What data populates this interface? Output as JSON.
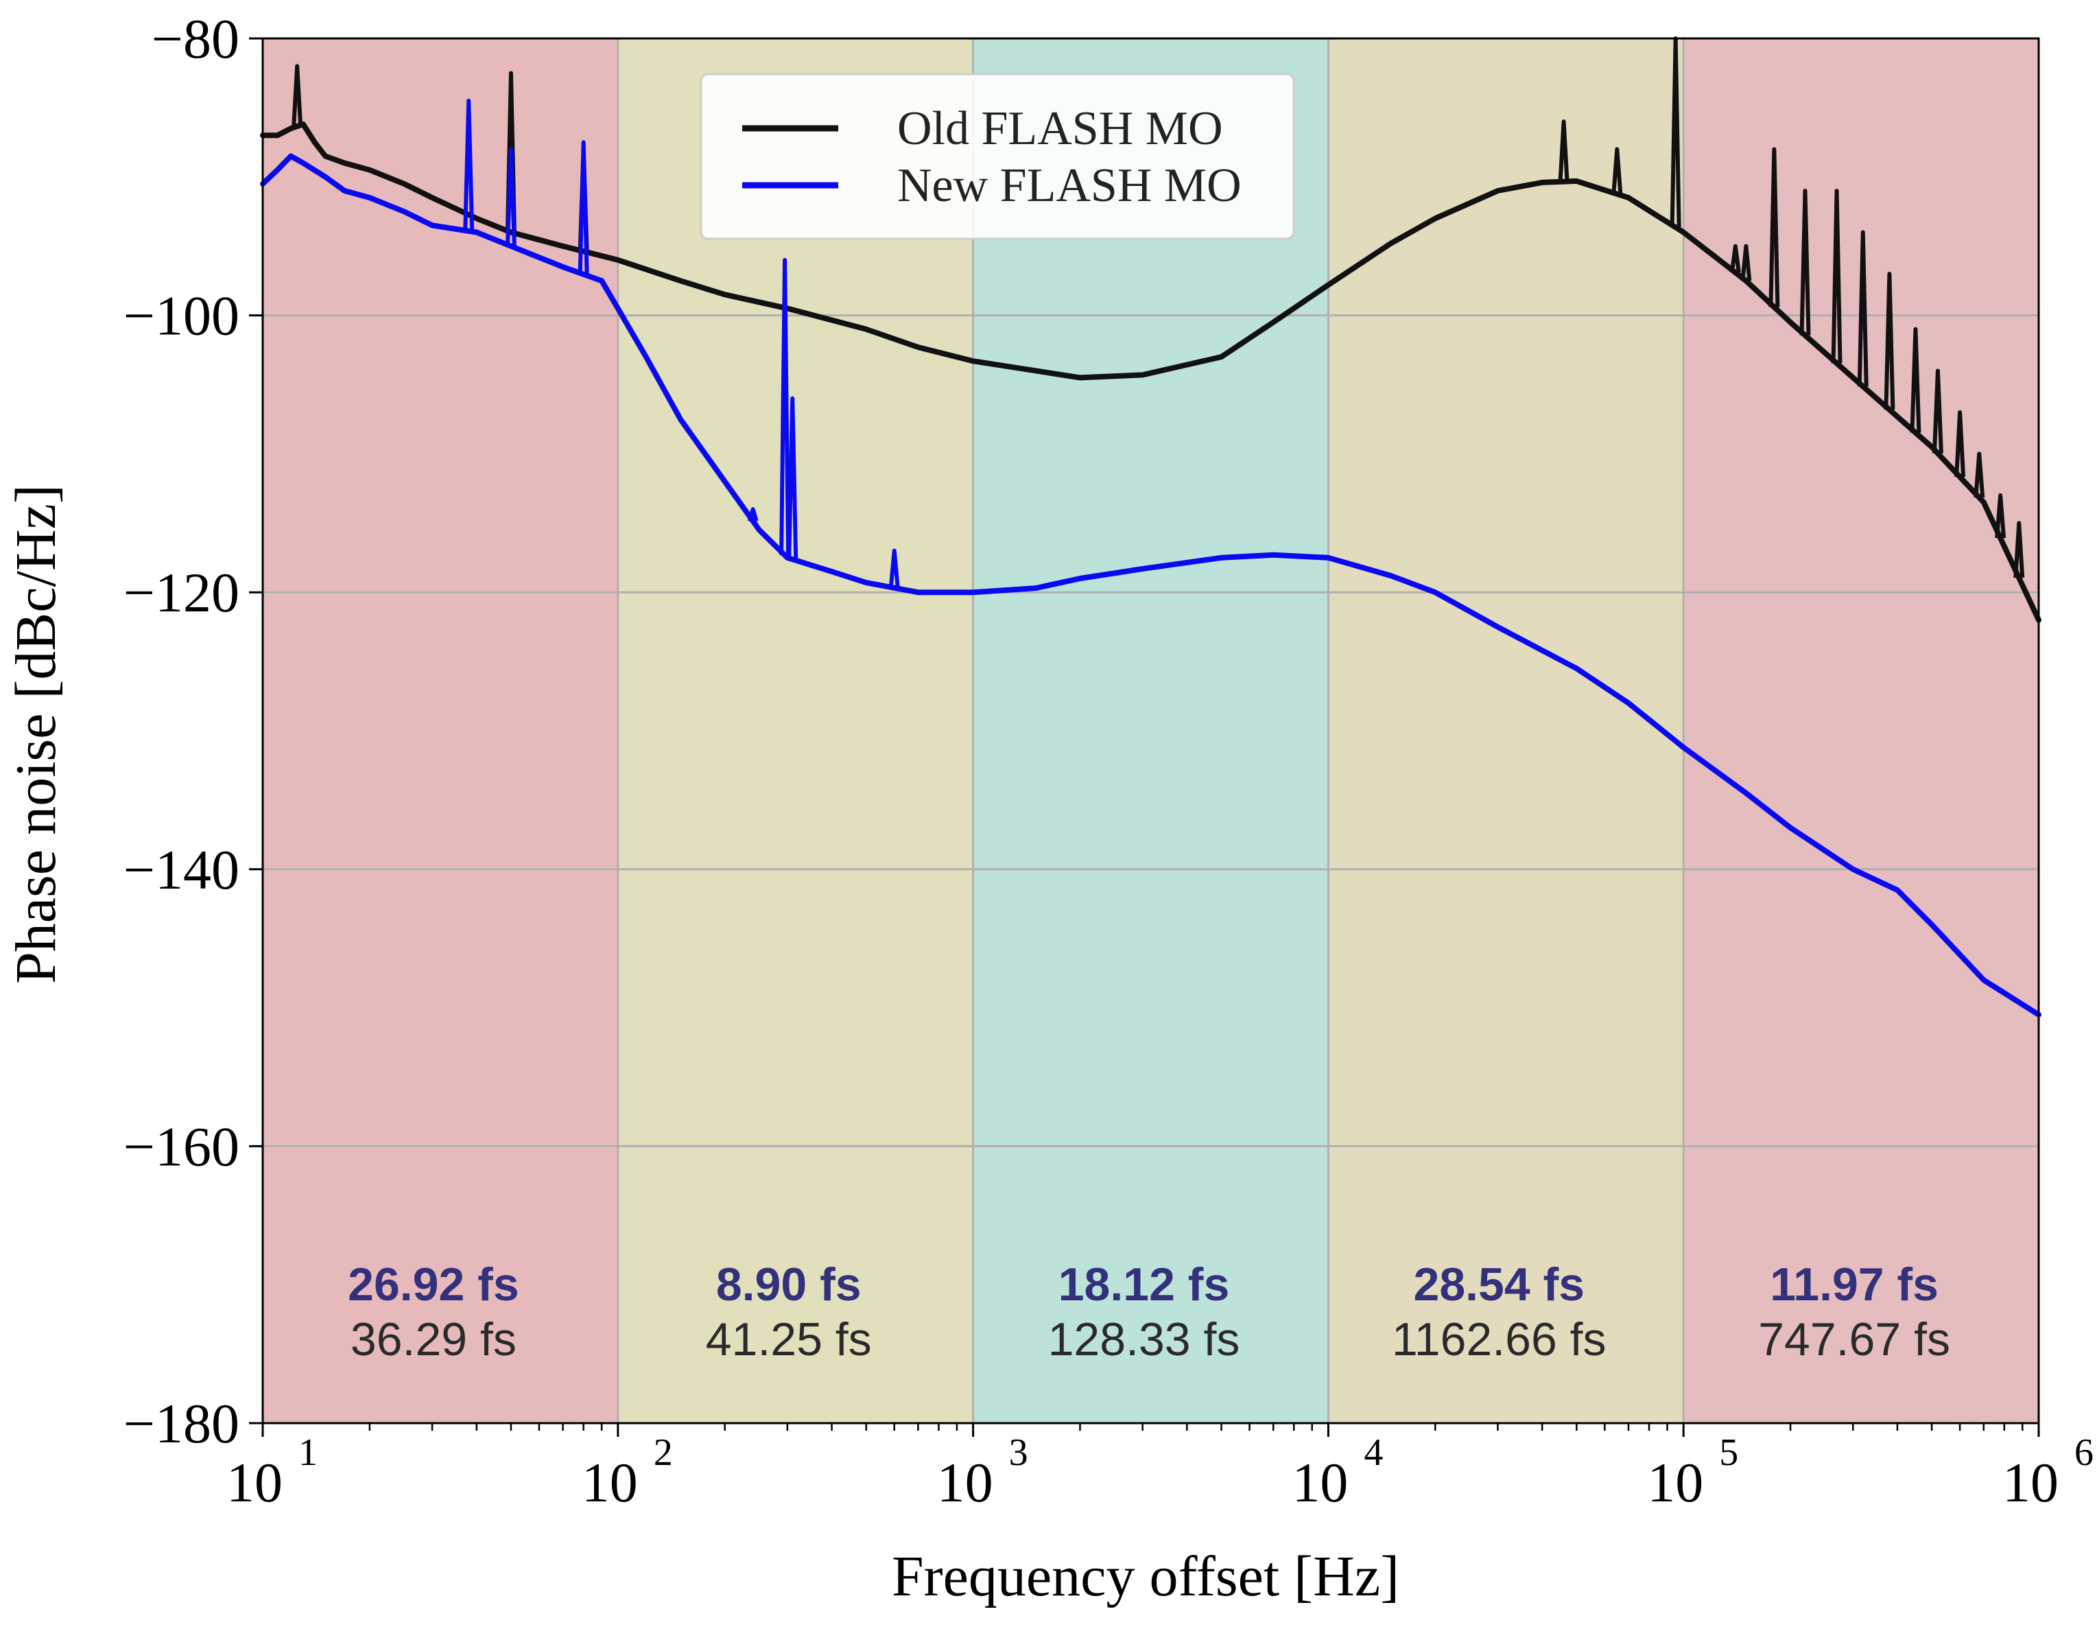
{
  "chart_data": {
    "type": "line",
    "xscale": "log",
    "xlim": [
      10,
      1000000
    ],
    "ylim": [
      -180,
      -80
    ],
    "xlabel": "Frequency offset [Hz]",
    "ylabel": "Phase noise [dBc/Hz]",
    "x_ticks": [
      {
        "value": 10,
        "base": "10",
        "exp": "1"
      },
      {
        "value": 100,
        "base": "10",
        "exp": "2"
      },
      {
        "value": 1000,
        "base": "10",
        "exp": "3"
      },
      {
        "value": 10000,
        "base": "10",
        "exp": "4"
      },
      {
        "value": 100000,
        "base": "10",
        "exp": "5"
      },
      {
        "value": 1000000,
        "base": "10",
        "exp": "6"
      }
    ],
    "y_ticks": [
      {
        "value": -80,
        "label": "−80"
      },
      {
        "value": -100,
        "label": "−100"
      },
      {
        "value": -120,
        "label": "−120"
      },
      {
        "value": -140,
        "label": "−140"
      },
      {
        "value": -160,
        "label": "−160"
      },
      {
        "value": -180,
        "label": "−180"
      }
    ],
    "grid": true,
    "legend": {
      "position": "top-center",
      "entries": [
        {
          "label": "Old FLASH MO",
          "color": "#111111"
        },
        {
          "label": "New FLASH MO",
          "color": "#0a0af0"
        }
      ]
    },
    "bands": [
      {
        "from": 10,
        "to": 100,
        "color": "#e6babb",
        "new_jitter": "26.92 fs",
        "old_jitter": "36.29 fs"
      },
      {
        "from": 100,
        "to": 1000,
        "color": "#e2dfbd",
        "new_jitter": "8.90 fs",
        "old_jitter": "41.25 fs"
      },
      {
        "from": 1000,
        "to": 10000,
        "color": "#bde2d9",
        "new_jitter": "18.12 fs",
        "old_jitter": "128.33 fs"
      },
      {
        "from": 10000,
        "to": 100000,
        "color": "#e3dbbe",
        "new_jitter": "28.54 fs",
        "old_jitter": "1162.66 fs"
      },
      {
        "from": 100000,
        "to": 1000000,
        "color": "#e5bdbf",
        "new_jitter": "11.97 fs",
        "old_jitter": "747.67 fs"
      }
    ],
    "series": [
      {
        "name": "Old FLASH MO",
        "color": "#111111",
        "x": [
          10,
          11,
          12,
          13,
          14,
          15,
          17,
          20,
          25,
          30,
          40,
          50,
          70,
          100,
          150,
          200,
          300,
          500,
          700,
          1000,
          1500,
          2000,
          3000,
          5000,
          7000,
          10000,
          15000,
          20000,
          30000,
          40000,
          50000,
          70000,
          100000,
          150000,
          200000,
          300000,
          500000,
          700000,
          1000000
        ],
        "y": [
          -87,
          -87,
          -86.5,
          -86.2,
          -87.5,
          -88.5,
          -89,
          -89.5,
          -90.5,
          -91.5,
          -93,
          -94,
          -95,
          -96,
          -97.5,
          -98.5,
          -99.5,
          -101,
          -102.3,
          -103.3,
          -104,
          -104.5,
          -104.3,
          -103,
          -100.5,
          -97.8,
          -94.8,
          -93,
          -91,
          -90.4,
          -90.3,
          -91.5,
          -94,
          -97.5,
          -100.5,
          -104.5,
          -109.5,
          -113.5,
          -122
        ]
      },
      {
        "name": "New FLASH MO",
        "color": "#0a0af0",
        "x": [
          10,
          11,
          12,
          13,
          15,
          17,
          20,
          25,
          30,
          40,
          50,
          70,
          90,
          100,
          120,
          150,
          200,
          250,
          300,
          400,
          500,
          700,
          1000,
          1500,
          2000,
          3000,
          5000,
          7000,
          10000,
          15000,
          20000,
          30000,
          50000,
          70000,
          100000,
          150000,
          200000,
          300000,
          400000,
          500000,
          700000,
          1000000
        ],
        "y": [
          -90.5,
          -89.5,
          -88.5,
          -89,
          -90,
          -91,
          -91.5,
          -92.5,
          -93.5,
          -94,
          -95,
          -96.5,
          -97.5,
          -99.5,
          -103,
          -107.5,
          -112,
          -115.5,
          -117.5,
          -118.5,
          -119.3,
          -120,
          -120,
          -119.7,
          -119,
          -118.3,
          -117.5,
          -117.3,
          -117.5,
          -118.8,
          -120,
          -122.5,
          -125.5,
          -128,
          -131.2,
          -134.5,
          -137,
          -140,
          -141.5,
          -144,
          -148,
          -150.5
        ]
      }
    ],
    "spikes": [
      {
        "series": 0,
        "x": 12.5,
        "y": -82
      },
      {
        "series": 0,
        "x": 50,
        "y": -82.5
      },
      {
        "series": 0,
        "x": 80,
        "y": -88
      },
      {
        "series": 0,
        "x": 46000,
        "y": -86
      },
      {
        "series": 0,
        "x": 65000,
        "y": -88
      },
      {
        "series": 0,
        "x": 95000,
        "y": -80
      },
      {
        "series": 0,
        "x": 140000,
        "y": -95
      },
      {
        "series": 0,
        "x": 150000,
        "y": -95
      },
      {
        "series": 0,
        "x": 180000,
        "y": -88
      },
      {
        "series": 0,
        "x": 220000,
        "y": -91
      },
      {
        "series": 0,
        "x": 270000,
        "y": -91
      },
      {
        "series": 0,
        "x": 320000,
        "y": -94
      },
      {
        "series": 0,
        "x": 380000,
        "y": -97
      },
      {
        "series": 0,
        "x": 450000,
        "y": -101
      },
      {
        "series": 0,
        "x": 520000,
        "y": -104
      },
      {
        "series": 0,
        "x": 600000,
        "y": -107
      },
      {
        "series": 0,
        "x": 680000,
        "y": -110
      },
      {
        "series": 0,
        "x": 780000,
        "y": -113
      },
      {
        "series": 0,
        "x": 880000,
        "y": -115
      },
      {
        "series": 1,
        "x": 38,
        "y": -84.5
      },
      {
        "series": 1,
        "x": 50,
        "y": -88
      },
      {
        "series": 1,
        "x": 80,
        "y": -87.5
      },
      {
        "series": 1,
        "x": 240,
        "y": -114
      },
      {
        "series": 1,
        "x": 295,
        "y": -96
      },
      {
        "series": 1,
        "x": 310,
        "y": -106
      },
      {
        "series": 1,
        "x": 600,
        "y": -117
      }
    ]
  }
}
